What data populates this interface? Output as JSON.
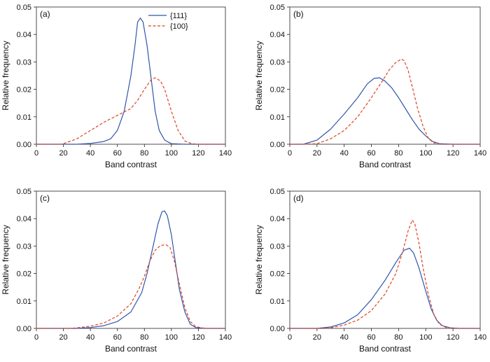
{
  "chart_data": [
    {
      "type": "line",
      "panel_label": "(a)",
      "xlabel": "Band contrast",
      "ylabel": "Relative frequency",
      "xlim": [
        0,
        140
      ],
      "ylim": [
        0,
        0.05
      ],
      "x_ticks": [
        0,
        20,
        40,
        60,
        80,
        100,
        120,
        140
      ],
      "y_ticks": [
        "0.00",
        "0.01",
        "0.02",
        "0.03",
        "0.04",
        "0.05"
      ],
      "legend": {
        "placement": "top-right"
      },
      "series": [
        {
          "name": "{111}",
          "color": "#3355aa",
          "dash": "solid",
          "points": [
            [
              0,
              0
            ],
            [
              20,
              0
            ],
            [
              30,
              0
            ],
            [
              40,
              0.0003
            ],
            [
              50,
              0.001
            ],
            [
              55,
              0.002
            ],
            [
              60,
              0.005
            ],
            [
              65,
              0.012
            ],
            [
              70,
              0.025
            ],
            [
              73,
              0.036
            ],
            [
              75,
              0.0445
            ],
            [
              77,
              0.046
            ],
            [
              79,
              0.0445
            ],
            [
              82,
              0.036
            ],
            [
              85,
              0.024
            ],
            [
              88,
              0.012
            ],
            [
              91,
              0.005
            ],
            [
              95,
              0.0015
            ],
            [
              100,
              0.0002
            ],
            [
              110,
              0
            ],
            [
              140,
              0
            ]
          ]
        },
        {
          "name": "{100}",
          "color": "#dd4422",
          "dash": "dashed",
          "points": [
            [
              0,
              0
            ],
            [
              18,
              0
            ],
            [
              20,
              0.0002
            ],
            [
              30,
              0.002
            ],
            [
              40,
              0.005
            ],
            [
              50,
              0.008
            ],
            [
              60,
              0.0105
            ],
            [
              70,
              0.013
            ],
            [
              75,
              0.016
            ],
            [
              80,
              0.02
            ],
            [
              85,
              0.0235
            ],
            [
              88,
              0.0242
            ],
            [
              92,
              0.023
            ],
            [
              95,
              0.02
            ],
            [
              100,
              0.012
            ],
            [
              105,
              0.005
            ],
            [
              110,
              0.0012
            ],
            [
              115,
              0.0002
            ],
            [
              120,
              0
            ],
            [
              140,
              0
            ]
          ]
        }
      ]
    },
    {
      "type": "line",
      "panel_label": "(b)",
      "xlabel": "Band contrast",
      "ylabel": "Relative frequency",
      "xlim": [
        0,
        140
      ],
      "ylim": [
        0,
        0.05
      ],
      "x_ticks": [
        0,
        20,
        40,
        60,
        80,
        100,
        120,
        140
      ],
      "y_ticks": [
        "0.00",
        "0.01",
        "0.02",
        "0.03",
        "0.04",
        "0.05"
      ],
      "series": [
        {
          "color": "#3355aa",
          "dash": "solid",
          "points": [
            [
              0,
              0
            ],
            [
              10,
              0
            ],
            [
              20,
              0.0015
            ],
            [
              30,
              0.0055
            ],
            [
              40,
              0.011
            ],
            [
              50,
              0.017
            ],
            [
              57,
              0.022
            ],
            [
              62,
              0.024
            ],
            [
              66,
              0.0242
            ],
            [
              70,
              0.023
            ],
            [
              75,
              0.0205
            ],
            [
              80,
              0.017
            ],
            [
              85,
              0.013
            ],
            [
              90,
              0.009
            ],
            [
              95,
              0.0055
            ],
            [
              100,
              0.003
            ],
            [
              105,
              0.001
            ],
            [
              110,
              0.0002
            ],
            [
              120,
              0
            ],
            [
              140,
              0
            ]
          ]
        },
        {
          "color": "#dd4422",
          "dash": "dashed",
          "points": [
            [
              0,
              0
            ],
            [
              10,
              0
            ],
            [
              20,
              0.0002
            ],
            [
              30,
              0.002
            ],
            [
              40,
              0.005
            ],
            [
              50,
              0.01
            ],
            [
              60,
              0.017
            ],
            [
              68,
              0.023
            ],
            [
              73,
              0.027
            ],
            [
              78,
              0.0298
            ],
            [
              82,
              0.031
            ],
            [
              84,
              0.0305
            ],
            [
              87,
              0.027
            ],
            [
              90,
              0.021
            ],
            [
              94,
              0.013
            ],
            [
              98,
              0.0065
            ],
            [
              102,
              0.002
            ],
            [
              106,
              0.0005
            ],
            [
              112,
              0
            ],
            [
              140,
              0
            ]
          ]
        }
      ]
    },
    {
      "type": "line",
      "panel_label": "(c)",
      "xlabel": "Band contrast",
      "ylabel": "Relative frequency",
      "xlim": [
        0,
        140
      ],
      "ylim": [
        0,
        0.05
      ],
      "x_ticks": [
        0,
        20,
        40,
        60,
        80,
        100,
        120,
        140
      ],
      "y_ticks": [
        "0.00",
        "0.01",
        "0.02",
        "0.03",
        "0.04",
        "0.05"
      ],
      "series": [
        {
          "color": "#3355aa",
          "dash": "solid",
          "points": [
            [
              0,
              0
            ],
            [
              30,
              0
            ],
            [
              40,
              0.0003
            ],
            [
              50,
              0.001
            ],
            [
              60,
              0.0025
            ],
            [
              70,
              0.006
            ],
            [
              78,
              0.013
            ],
            [
              82,
              0.02
            ],
            [
              86,
              0.029
            ],
            [
              90,
              0.038
            ],
            [
              93,
              0.0425
            ],
            [
              95,
              0.0428
            ],
            [
              97,
              0.041
            ],
            [
              100,
              0.034
            ],
            [
              103,
              0.024
            ],
            [
              106,
              0.014
            ],
            [
              110,
              0.006
            ],
            [
              114,
              0.0015
            ],
            [
              118,
              0.0003
            ],
            [
              125,
              0
            ],
            [
              140,
              0
            ]
          ]
        },
        {
          "color": "#dd4422",
          "dash": "dashed",
          "points": [
            [
              0,
              0
            ],
            [
              25,
              0
            ],
            [
              30,
              0.0002
            ],
            [
              40,
              0.0008
            ],
            [
              50,
              0.002
            ],
            [
              60,
              0.0045
            ],
            [
              70,
              0.009
            ],
            [
              76,
              0.0145
            ],
            [
              80,
              0.019
            ],
            [
              84,
              0.0245
            ],
            [
              88,
              0.0285
            ],
            [
              92,
              0.0302
            ],
            [
              96,
              0.0305
            ],
            [
              99,
              0.0295
            ],
            [
              102,
              0.025
            ],
            [
              106,
              0.016
            ],
            [
              110,
              0.0075
            ],
            [
              114,
              0.0025
            ],
            [
              118,
              0.0006
            ],
            [
              125,
              0
            ],
            [
              140,
              0
            ]
          ]
        }
      ]
    },
    {
      "type": "line",
      "panel_label": "(d)",
      "xlabel": "Band contrast",
      "ylabel": "Relative frequency",
      "xlim": [
        0,
        140
      ],
      "ylim": [
        0,
        0.05
      ],
      "x_ticks": [
        0,
        20,
        40,
        60,
        80,
        100,
        120,
        140
      ],
      "y_ticks": [
        "0.00",
        "0.01",
        "0.02",
        "0.03",
        "0.04",
        "0.05"
      ],
      "series": [
        {
          "color": "#3355aa",
          "dash": "solid",
          "points": [
            [
              0,
              0
            ],
            [
              20,
              0
            ],
            [
              30,
              0.0005
            ],
            [
              40,
              0.002
            ],
            [
              50,
              0.005
            ],
            [
              60,
              0.0105
            ],
            [
              70,
              0.0175
            ],
            [
              78,
              0.024
            ],
            [
              84,
              0.0285
            ],
            [
              88,
              0.0292
            ],
            [
              91,
              0.0275
            ],
            [
              95,
              0.022
            ],
            [
              100,
              0.0135
            ],
            [
              104,
              0.007
            ],
            [
              108,
              0.003
            ],
            [
              112,
              0.001
            ],
            [
              118,
              0.0002
            ],
            [
              125,
              0
            ],
            [
              140,
              0
            ]
          ]
        },
        {
          "color": "#dd4422",
          "dash": "dashed",
          "points": [
            [
              0,
              0
            ],
            [
              25,
              0
            ],
            [
              30,
              0.0002
            ],
            [
              40,
              0.0012
            ],
            [
              50,
              0.003
            ],
            [
              60,
              0.0065
            ],
            [
              70,
              0.0125
            ],
            [
              78,
              0.02
            ],
            [
              83,
              0.028
            ],
            [
              87,
              0.0355
            ],
            [
              90,
              0.0395
            ],
            [
              92,
              0.038
            ],
            [
              95,
              0.031
            ],
            [
              98,
              0.022
            ],
            [
              102,
              0.012
            ],
            [
              106,
              0.005
            ],
            [
              110,
              0.0015
            ],
            [
              115,
              0.0003
            ],
            [
              120,
              0
            ],
            [
              140,
              0
            ]
          ]
        }
      ]
    }
  ]
}
